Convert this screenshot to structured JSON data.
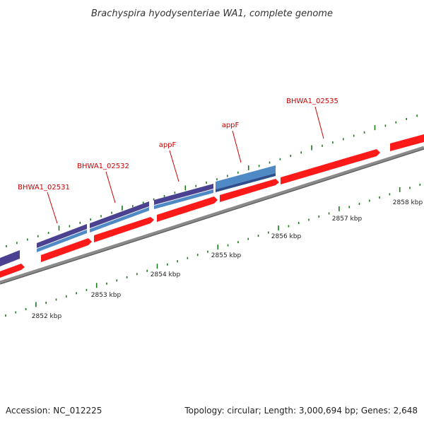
{
  "title": "Brachyspira hyodysenteriae WA1, complete genome",
  "footer": {
    "accession_text": "Accession: NC_012225",
    "summary_text": "Topology: circular; Length: 3,000,694 bp; Genes: 2,648"
  },
  "colors": {
    "forward_cds": "#ff1a1a",
    "reverse_cds_dark": "#4a4290",
    "reverse_cds_light": "#4f8ac6",
    "backbone": "#8a8a8a",
    "tick": "#1a7a1a",
    "gene_label": "#cc0000"
  },
  "gene_labels": [
    {
      "id": "g1",
      "text": "BHWA1_02531"
    },
    {
      "id": "g2",
      "text": "BHWA1_02532"
    },
    {
      "id": "g3",
      "text": "appF"
    },
    {
      "id": "g4",
      "text": "appF"
    },
    {
      "id": "g5",
      "text": "BHWA1_02535"
    }
  ],
  "scale_labels": [
    {
      "id": "k2852",
      "text": "2852 kbp"
    },
    {
      "id": "k2853",
      "text": "2853 kbp"
    },
    {
      "id": "k2854",
      "text": "2854 kbp"
    },
    {
      "id": "k2855",
      "text": "2855 kbp"
    },
    {
      "id": "k2856",
      "text": "2856 kbp"
    },
    {
      "id": "k2857",
      "text": "2857 kbp"
    },
    {
      "id": "k2858",
      "text": "2858 kbp"
    }
  ]
}
